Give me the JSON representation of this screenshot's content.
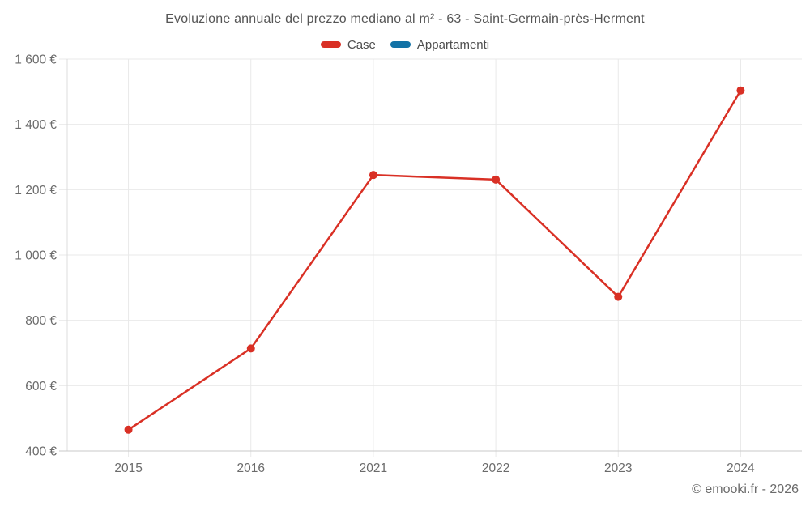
{
  "chart_data": {
    "type": "line",
    "title": "Evoluzione annuale del prezzo mediano al m² - 63 - Saint-Germain-près-Herment",
    "categories": [
      "2015",
      "2016",
      "2021",
      "2022",
      "2023",
      "2024"
    ],
    "series": [
      {
        "name": "Case",
        "color": "#d93025",
        "values": [
          465,
          714,
          1245,
          1231,
          872,
          1504
        ]
      },
      {
        "name": "Appartamenti",
        "color": "#1272a6",
        "values": []
      }
    ],
    "ylim": [
      400,
      1600
    ],
    "ytick_step": 200,
    "ytick_labels": [
      "400 €",
      "600 €",
      "800 €",
      "1 000 €",
      "1 200 €",
      "1 400 €",
      "1 600 €"
    ],
    "currency_suffix": "€",
    "grid": true,
    "legend_position": "top",
    "marker": "circle"
  },
  "footer": {
    "copyright": "© emooki.fr - 2026"
  }
}
